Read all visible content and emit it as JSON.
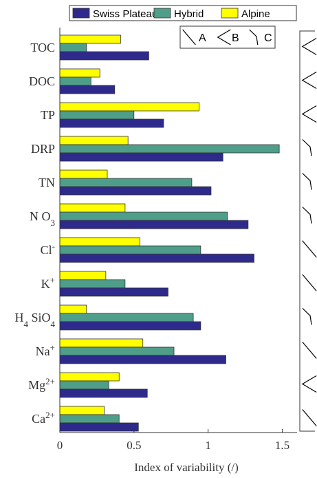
{
  "chart_data": {
    "type": "bar",
    "orientation": "horizontal",
    "categories": [
      "TOC",
      "DOC",
      "TP",
      "DRP",
      "TN",
      "NO3",
      "Cl-",
      "K+",
      "H4SiO4",
      "Na+",
      "Mg2+",
      "Ca2+"
    ],
    "category_labels": [
      {
        "base": "TOC",
        "sub": "",
        "sup": ""
      },
      {
        "base": "DOC",
        "sub": "",
        "sup": ""
      },
      {
        "base": "TP",
        "sub": "",
        "sup": ""
      },
      {
        "base": "DRP",
        "sub": "",
        "sup": ""
      },
      {
        "base": "TN",
        "sub": "",
        "sup": ""
      },
      {
        "base": "N O",
        "sub": "3",
        "sup": ""
      },
      {
        "base": "Cl",
        "sub": "",
        "sup": "-"
      },
      {
        "base": "K",
        "sub": "",
        "sup": "+"
      },
      {
        "base": "H",
        "sub": "4",
        "sup": "",
        "tail": " SiO",
        "tail_sub": "4"
      },
      {
        "base": "Na",
        "sub": "",
        "sup": "+"
      },
      {
        "base": "Mg",
        "sub": "",
        "sup": "2+"
      },
      {
        "base": "Ca",
        "sub": "",
        "sup": "2+"
      }
    ],
    "series": [
      {
        "name": "Alpine",
        "color": "#ffff00",
        "values": [
          0.41,
          0.27,
          0.94,
          0.46,
          0.32,
          0.44,
          0.54,
          0.31,
          0.18,
          0.56,
          0.4,
          0.3
        ]
      },
      {
        "name": "Hybrid",
        "color": "#4f9e8a",
        "values": [
          0.18,
          0.21,
          0.5,
          1.48,
          0.89,
          1.13,
          0.95,
          0.44,
          0.9,
          0.77,
          0.33,
          0.4
        ]
      },
      {
        "name": "Swiss Plateau",
        "color": "#2e2a8c",
        "values": [
          0.6,
          0.37,
          0.7,
          1.1,
          1.02,
          1.27,
          1.31,
          0.73,
          0.95,
          1.12,
          0.59,
          0.53
        ]
      }
    ],
    "legend_order": [
      "Swiss Plateau",
      "Hybrid",
      "Alpine"
    ],
    "xlabel": "Index of variability (/)",
    "ylabel": "",
    "xlim": [
      0,
      1.6
    ],
    "xticks": [
      0,
      0.5,
      1,
      1.5
    ],
    "xtick_labels": [
      "0",
      "0.5",
      "1",
      "1.5"
    ],
    "grid": false,
    "legend_position": "top",
    "pattern_legend": [
      {
        "label": "A",
        "shape": "descending-line"
      },
      {
        "label": "B",
        "shape": "chevron-left"
      },
      {
        "label": "C",
        "shape": "bent-down"
      }
    ],
    "pattern_per_category": [
      "B",
      "B",
      "B",
      "C",
      "C",
      "C",
      "A",
      "A",
      "C",
      "A",
      "B",
      "A"
    ]
  }
}
